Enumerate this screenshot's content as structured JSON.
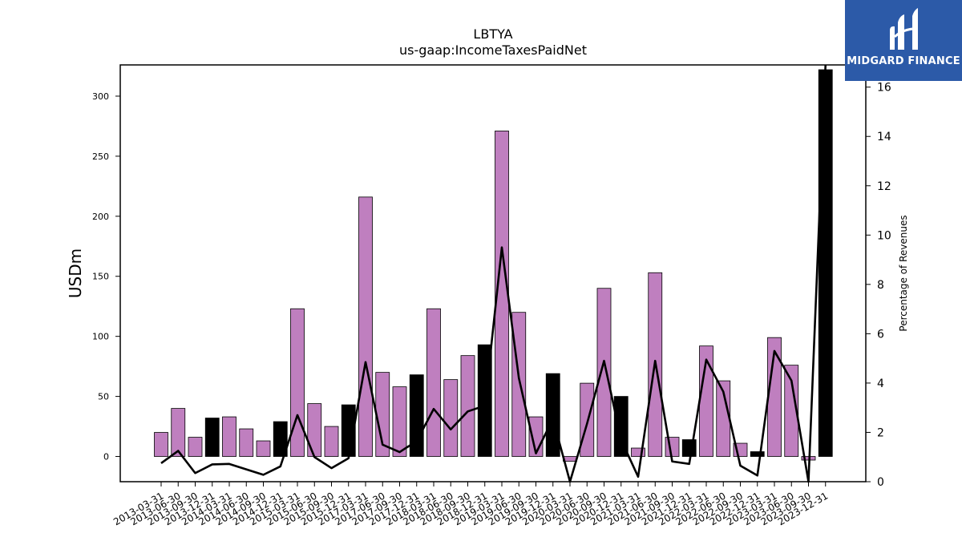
{
  "chart_data": {
    "type": "bar",
    "title": "LBTYA",
    "subtitle": "us-gaap:IncomeTaxesPaidNet",
    "ylabel": "USDm",
    "y2label": "Percentage of Revenues",
    "ylim": [
      -21,
      326
    ],
    "y2lim": [
      0,
      16.9
    ],
    "yticks": [
      0,
      50,
      100,
      150,
      200,
      250,
      300
    ],
    "y2ticks": [
      0,
      2,
      4,
      6,
      8,
      10,
      12,
      14,
      16
    ],
    "colors": {
      "quarter": "#bf7fbf",
      "year_end": "#000000",
      "line": "#000000"
    },
    "categories": [
      "2013-03-31",
      "2013-06-30",
      "2013-09-30",
      "2013-12-31",
      "2014-03-31",
      "2014-06-30",
      "2014-09-30",
      "2014-12-31",
      "2015-03-31",
      "2015-06-30",
      "2015-09-30",
      "2015-12-31",
      "2017-03-31",
      "2017-06-30",
      "2017-09-30",
      "2017-12-31",
      "2018-03-31",
      "2018-06-30",
      "2018-09-30",
      "2018-12-31",
      "2019-03-31",
      "2019-06-30",
      "2019-09-30",
      "2019-12-31",
      "2020-03-31",
      "2020-06-30",
      "2020-09-30",
      "2020-12-31",
      "2021-03-31",
      "2021-06-30",
      "2021-09-30",
      "2021-12-31",
      "2022-03-31",
      "2022-06-30",
      "2022-09-30",
      "2022-12-31",
      "2023-03-31",
      "2023-06-30",
      "2023-09-30",
      "2023-12-31"
    ],
    "series": [
      {
        "values": [
          20,
          40,
          16,
          32,
          33,
          23,
          13,
          29,
          123,
          44,
          25,
          43,
          216,
          70,
          58,
          68,
          123,
          64,
          84,
          93,
          271,
          120,
          33,
          69,
          -4,
          61,
          140,
          50,
          7,
          153,
          16,
          14,
          92,
          63,
          11,
          4,
          99,
          76,
          -3,
          322
        ],
        "highlight": [
          false,
          false,
          false,
          true,
          false,
          false,
          false,
          true,
          false,
          false,
          false,
          true,
          false,
          false,
          false,
          true,
          false,
          false,
          false,
          true,
          false,
          false,
          false,
          true,
          false,
          false,
          false,
          true,
          false,
          false,
          false,
          true,
          false,
          false,
          false,
          true,
          false,
          false,
          false,
          true
        ]
      },
      {
        "axis": "right",
        "values": [
          0.75,
          1.25,
          0.35,
          0.7,
          0.72,
          0.5,
          0.28,
          0.62,
          2.7,
          1.0,
          0.55,
          0.95,
          4.85,
          1.5,
          1.2,
          1.65,
          2.95,
          2.12,
          2.85,
          3.08,
          9.5,
          4.2,
          1.15,
          2.55,
          0.0,
          2.35,
          4.9,
          1.7,
          0.2,
          4.9,
          0.82,
          0.72,
          4.95,
          3.65,
          0.65,
          0.25,
          5.3,
          4.1,
          0.0,
          16.9
        ]
      }
    ]
  },
  "logo": {
    "text": "MIDGARD FINANCE"
  }
}
